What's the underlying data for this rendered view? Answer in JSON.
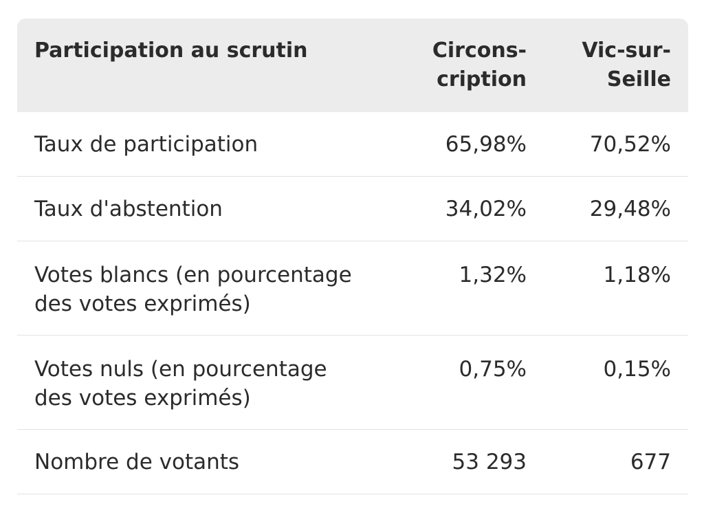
{
  "table": {
    "header": {
      "label": "Participation au scrutin",
      "col1": "Circons-\ncription",
      "col2": "Vic-sur-\nSeille"
    },
    "rows": [
      {
        "label": "Taux de participation",
        "v1": "65,98%",
        "v2": "70,52%"
      },
      {
        "label": "Taux d'abstention",
        "v1": "34,02%",
        "v2": "29,48%"
      },
      {
        "label": "Votes blancs (en pourcentage\ndes votes exprimés)",
        "v1": "1,32%",
        "v2": "1,18%"
      },
      {
        "label": "Votes nuls (en pourcentage\ndes votes exprimés)",
        "v1": "0,75%",
        "v2": "0,15%"
      },
      {
        "label": "Nombre de votants",
        "v1": "53 293",
        "v2": "677"
      }
    ]
  }
}
